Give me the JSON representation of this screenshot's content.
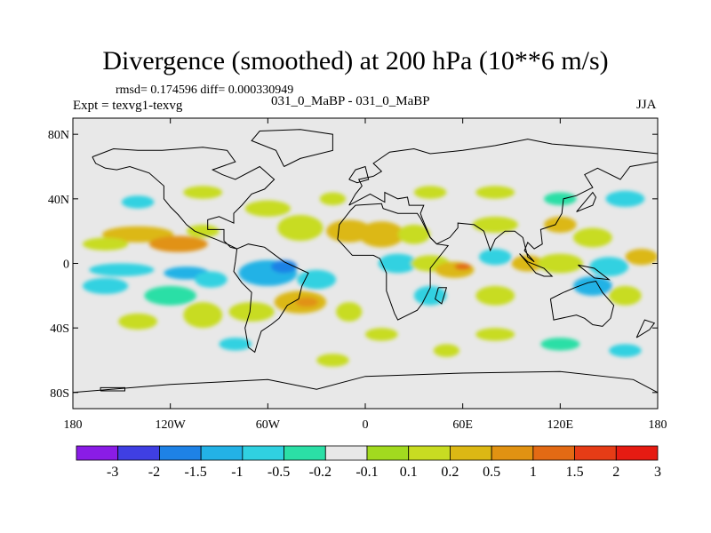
{
  "chart_data": {
    "type": "heatmap",
    "title": "Divergence (smoothed) at 200 hPa (10**6 m/s)",
    "stats_line": "rmsd= 0.174596 diff= 0.000330949",
    "experiment": "Expt = texvg1-texvg",
    "cases": "031_0_MaBP - 031_0_MaBP",
    "season": "JJA",
    "x_range": [
      -180,
      180
    ],
    "y_range": [
      -90,
      90
    ],
    "x_ticks": [
      {
        "value": -180,
        "label": "180"
      },
      {
        "value": -120,
        "label": "120W"
      },
      {
        "value": -60,
        "label": "60W"
      },
      {
        "value": 0,
        "label": "0"
      },
      {
        "value": 60,
        "label": "60E"
      },
      {
        "value": 120,
        "label": "120E"
      },
      {
        "value": 180,
        "label": "180"
      }
    ],
    "y_ticks": [
      {
        "value": 80,
        "label": "80N"
      },
      {
        "value": 40,
        "label": "40N"
      },
      {
        "value": 0,
        "label": "0"
      },
      {
        "value": -40,
        "label": "40S"
      },
      {
        "value": -80,
        "label": "80S"
      }
    ],
    "colorbar": {
      "colors": [
        "#8a1ce6",
        "#3f3fe3",
        "#1e82e6",
        "#23b2e6",
        "#30d1e1",
        "#2bdfa6",
        "#e8e8e8",
        "#a2da1f",
        "#c8dc22",
        "#dcb814",
        "#e19212",
        "#e36a14",
        "#e63c16",
        "#e61b12"
      ],
      "labels": [
        "-3",
        "-2",
        "-1.5",
        "-1",
        "-0.5",
        "-0.2",
        "-0.1",
        "0.1",
        "0.2",
        "0.5",
        "1",
        "1.5",
        "2",
        "3"
      ]
    },
    "features": [
      {
        "lon": -140,
        "lat": 18,
        "rx": 22,
        "ry": 5,
        "level": 9
      },
      {
        "lon": -115,
        "lat": 12,
        "rx": 18,
        "ry": 5,
        "level": 10
      },
      {
        "lon": -160,
        "lat": 12,
        "rx": 14,
        "ry": 4,
        "level": 8
      },
      {
        "lon": -100,
        "lat": 20,
        "rx": 10,
        "ry": 4,
        "level": 8
      },
      {
        "lon": -150,
        "lat": -4,
        "rx": 20,
        "ry": 4,
        "level": 4
      },
      {
        "lon": -110,
        "lat": -6,
        "rx": 14,
        "ry": 4,
        "level": 3
      },
      {
        "lon": -160,
        "lat": -14,
        "rx": 14,
        "ry": 5,
        "level": 4
      },
      {
        "lon": -120,
        "lat": -20,
        "rx": 16,
        "ry": 6,
        "level": 5
      },
      {
        "lon": -95,
        "lat": -10,
        "rx": 10,
        "ry": 5,
        "level": 4
      },
      {
        "lon": -60,
        "lat": -6,
        "rx": 18,
        "ry": 8,
        "level": 3
      },
      {
        "lon": -50,
        "lat": -2,
        "rx": 8,
        "ry": 4,
        "level": 2
      },
      {
        "lon": -30,
        "lat": -10,
        "rx": 12,
        "ry": 6,
        "level": 4
      },
      {
        "lon": -40,
        "lat": -24,
        "rx": 16,
        "ry": 7,
        "level": 9
      },
      {
        "lon": -36,
        "lat": -24,
        "rx": 7,
        "ry": 3,
        "level": 10
      },
      {
        "lon": -70,
        "lat": -30,
        "rx": 14,
        "ry": 6,
        "level": 8
      },
      {
        "lon": -100,
        "lat": -32,
        "rx": 12,
        "ry": 8,
        "level": 8
      },
      {
        "lon": -10,
        "lat": -30,
        "rx": 8,
        "ry": 6,
        "level": 8
      },
      {
        "lon": -40,
        "lat": 22,
        "rx": 14,
        "ry": 8,
        "level": 8
      },
      {
        "lon": -10,
        "lat": 20,
        "rx": 14,
        "ry": 7,
        "level": 9
      },
      {
        "lon": 10,
        "lat": 18,
        "rx": 14,
        "ry": 8,
        "level": 9
      },
      {
        "lon": 30,
        "lat": 18,
        "rx": 10,
        "ry": 6,
        "level": 8
      },
      {
        "lon": 20,
        "lat": 0,
        "rx": 12,
        "ry": 6,
        "level": 4
      },
      {
        "lon": 40,
        "lat": 0,
        "rx": 12,
        "ry": 5,
        "level": 8
      },
      {
        "lon": 55,
        "lat": -4,
        "rx": 12,
        "ry": 5,
        "level": 9
      },
      {
        "lon": 60,
        "lat": -2,
        "rx": 5,
        "ry": 2,
        "level": 11
      },
      {
        "lon": 80,
        "lat": 4,
        "rx": 10,
        "ry": 5,
        "level": 4
      },
      {
        "lon": 100,
        "lat": 0,
        "rx": 10,
        "ry": 5,
        "level": 9
      },
      {
        "lon": 120,
        "lat": 0,
        "rx": 14,
        "ry": 6,
        "level": 8
      },
      {
        "lon": 150,
        "lat": -2,
        "rx": 12,
        "ry": 6,
        "level": 4
      },
      {
        "lon": 170,
        "lat": 4,
        "rx": 10,
        "ry": 5,
        "level": 9
      },
      {
        "lon": 80,
        "lat": 24,
        "rx": 14,
        "ry": 5,
        "level": 8
      },
      {
        "lon": 120,
        "lat": 24,
        "rx": 10,
        "ry": 5,
        "level": 9
      },
      {
        "lon": 140,
        "lat": 16,
        "rx": 12,
        "ry": 6,
        "level": 8
      },
      {
        "lon": 40,
        "lat": -20,
        "rx": 10,
        "ry": 6,
        "level": 4
      },
      {
        "lon": 80,
        "lat": -20,
        "rx": 12,
        "ry": 6,
        "level": 8
      },
      {
        "lon": 140,
        "lat": -14,
        "rx": 12,
        "ry": 6,
        "level": 3
      },
      {
        "lon": 160,
        "lat": -20,
        "rx": 10,
        "ry": 6,
        "level": 8
      },
      {
        "lon": -100,
        "lat": 44,
        "rx": 12,
        "ry": 4,
        "level": 8
      },
      {
        "lon": -140,
        "lat": 38,
        "rx": 10,
        "ry": 4,
        "level": 4
      },
      {
        "lon": -60,
        "lat": 34,
        "rx": 14,
        "ry": 5,
        "level": 8
      },
      {
        "lon": 40,
        "lat": 44,
        "rx": 10,
        "ry": 4,
        "level": 8
      },
      {
        "lon": 80,
        "lat": 44,
        "rx": 12,
        "ry": 4,
        "level": 8
      },
      {
        "lon": 120,
        "lat": 40,
        "rx": 10,
        "ry": 4,
        "level": 5
      },
      {
        "lon": 160,
        "lat": 40,
        "rx": 12,
        "ry": 5,
        "level": 4
      },
      {
        "lon": -20,
        "lat": 40,
        "rx": 8,
        "ry": 4,
        "level": 8
      },
      {
        "lon": 10,
        "lat": -44,
        "rx": 10,
        "ry": 4,
        "level": 8
      },
      {
        "lon": 50,
        "lat": -54,
        "rx": 8,
        "ry": 4,
        "level": 8
      },
      {
        "lon": 120,
        "lat": -50,
        "rx": 12,
        "ry": 4,
        "level": 5
      },
      {
        "lon": 160,
        "lat": -54,
        "rx": 10,
        "ry": 4,
        "level": 4
      },
      {
        "lon": -140,
        "lat": -36,
        "rx": 12,
        "ry": 5,
        "level": 8
      },
      {
        "lon": -80,
        "lat": -50,
        "rx": 10,
        "ry": 4,
        "level": 4
      },
      {
        "lon": -20,
        "lat": -60,
        "rx": 10,
        "ry": 4,
        "level": 8
      },
      {
        "lon": 80,
        "lat": -44,
        "rx": 12,
        "ry": 4,
        "level": 8
      }
    ],
    "coastlines": [
      [
        [
          -168,
          66
        ],
        [
          -155,
          71
        ],
        [
          -140,
          70
        ],
        [
          -125,
          70
        ],
        [
          -100,
          72
        ],
        [
          -85,
          70
        ],
        [
          -80,
          63
        ],
        [
          -94,
          58
        ],
        [
          -88,
          55
        ],
        [
          -80,
          52
        ],
        [
          -65,
          60
        ],
        [
          -56,
          52
        ],
        [
          -62,
          46
        ],
        [
          -70,
          43
        ],
        [
          -76,
          36
        ],
        [
          -81,
          31
        ],
        [
          -81,
          25
        ],
        [
          -90,
          29
        ],
        [
          -97,
          27
        ],
        [
          -97,
          21
        ],
        [
          -87,
          21
        ],
        [
          -87,
          14
        ],
        [
          -83,
          10
        ],
        [
          -79,
          9
        ],
        [
          -85,
          12
        ],
        [
          -92,
          15
        ],
        [
          -105,
          20
        ],
        [
          -110,
          24
        ],
        [
          -115,
          30
        ],
        [
          -120,
          35
        ],
        [
          -124,
          40
        ],
        [
          -124,
          48
        ],
        [
          -133,
          56
        ],
        [
          -145,
          60
        ],
        [
          -153,
          58
        ],
        [
          -160,
          59
        ],
        [
          -166,
          62
        ],
        [
          -168,
          66
        ]
      ],
      [
        [
          -79,
          9
        ],
        [
          -72,
          12
        ],
        [
          -62,
          10
        ],
        [
          -50,
          1
        ],
        [
          -35,
          -6
        ],
        [
          -39,
          -14
        ],
        [
          -41,
          -22
        ],
        [
          -48,
          -26
        ],
        [
          -53,
          -34
        ],
        [
          -58,
          -38
        ],
        [
          -64,
          -42
        ],
        [
          -66,
          -48
        ],
        [
          -68,
          -55
        ],
        [
          -72,
          -52
        ],
        [
          -74,
          -40
        ],
        [
          -71,
          -30
        ],
        [
          -70,
          -18
        ],
        [
          -76,
          -12
        ],
        [
          -81,
          -5
        ],
        [
          -80,
          1
        ],
        [
          -79,
          9
        ]
      ],
      [
        [
          -50,
          60
        ],
        [
          -40,
          65
        ],
        [
          -20,
          70
        ],
        [
          -20,
          80
        ],
        [
          -40,
          83
        ],
        [
          -65,
          82
        ],
        [
          -70,
          76
        ],
        [
          -55,
          70
        ],
        [
          -50,
          60
        ]
      ],
      [
        [
          -10,
          36
        ],
        [
          -6,
          43
        ],
        [
          -2,
          48
        ],
        [
          -4,
          52
        ],
        [
          5,
          54
        ],
        [
          10,
          57
        ],
        [
          5,
          62
        ],
        [
          15,
          69
        ],
        [
          30,
          71
        ],
        [
          40,
          68
        ],
        [
          60,
          70
        ],
        [
          80,
          73
        ],
        [
          100,
          77
        ],
        [
          115,
          74
        ],
        [
          140,
          72
        ],
        [
          160,
          70
        ],
        [
          180,
          68
        ],
        [
          180,
          63
        ],
        [
          163,
          60
        ],
        [
          157,
          52
        ],
        [
          143,
          59
        ],
        [
          135,
          55
        ],
        [
          140,
          47
        ],
        [
          130,
          42
        ],
        [
          122,
          40
        ],
        [
          121,
          31
        ],
        [
          117,
          24
        ],
        [
          108,
          21
        ],
        [
          109,
          12
        ],
        [
          104,
          9
        ],
        [
          100,
          13
        ],
        [
          98,
          8
        ],
        [
          104,
          1
        ],
        [
          100,
          4
        ],
        [
          97,
          16
        ],
        [
          92,
          20
        ],
        [
          86,
          20
        ],
        [
          80,
          15
        ],
        [
          77,
          8
        ],
        [
          73,
          20
        ],
        [
          67,
          24
        ],
        [
          57,
          25
        ],
        [
          57,
          22
        ],
        [
          52,
          16
        ],
        [
          44,
          12
        ],
        [
          40,
          16
        ],
        [
          35,
          28
        ],
        [
          34,
          31
        ],
        [
          36,
          36
        ],
        [
          27,
          36
        ],
        [
          26,
          41
        ],
        [
          20,
          40
        ],
        [
          12,
          44
        ],
        [
          12,
          38
        ],
        [
          3,
          43
        ],
        [
          -10,
          36
        ]
      ],
      [
        [
          -17,
          15
        ],
        [
          -16,
          24
        ],
        [
          -9,
          33
        ],
        [
          -6,
          36
        ],
        [
          10,
          37
        ],
        [
          11,
          34
        ],
        [
          20,
          31
        ],
        [
          32,
          31
        ],
        [
          34,
          28
        ],
        [
          40,
          16
        ],
        [
          44,
          12
        ],
        [
          51,
          11
        ],
        [
          40,
          -3
        ],
        [
          40,
          -15
        ],
        [
          35,
          -25
        ],
        [
          32,
          -29
        ],
        [
          20,
          -35
        ],
        [
          18,
          -31
        ],
        [
          13,
          -17
        ],
        [
          13,
          -6
        ],
        [
          9,
          3
        ],
        [
          5,
          5
        ],
        [
          -8,
          5
        ],
        [
          -17,
          15
        ]
      ],
      [
        [
          114,
          -22
        ],
        [
          122,
          -18
        ],
        [
          129,
          -15
        ],
        [
          137,
          -12
        ],
        [
          142,
          -11
        ],
        [
          146,
          -18
        ],
        [
          153,
          -26
        ],
        [
          151,
          -34
        ],
        [
          146,
          -39
        ],
        [
          140,
          -38
        ],
        [
          135,
          -34
        ],
        [
          130,
          -32
        ],
        [
          116,
          -35
        ],
        [
          114,
          -22
        ]
      ],
      [
        [
          -180,
          -80
        ],
        [
          -120,
          -75
        ],
        [
          -60,
          -72
        ],
        [
          -30,
          -78
        ],
        [
          0,
          -70
        ],
        [
          60,
          -68
        ],
        [
          120,
          -67
        ],
        [
          165,
          -72
        ],
        [
          180,
          -80
        ]
      ],
      [
        [
          95,
          6
        ],
        [
          105,
          -6
        ],
        [
          110,
          -8
        ],
        [
          115,
          -8
        ],
        [
          110,
          -3
        ],
        [
          100,
          1
        ],
        [
          95,
          6
        ]
      ],
      [
        [
          131,
          -1
        ],
        [
          141,
          -3
        ],
        [
          150,
          -10
        ],
        [
          141,
          -9
        ],
        [
          131,
          -1
        ]
      ],
      [
        [
          167,
          -46
        ],
        [
          175,
          -41
        ],
        [
          178,
          -37
        ],
        [
          172,
          -35
        ],
        [
          167,
          -46
        ]
      ],
      [
        [
          -10,
          52
        ],
        [
          -6,
          58
        ],
        [
          0,
          60
        ],
        [
          2,
          52
        ],
        [
          -5,
          50
        ],
        [
          -10,
          52
        ]
      ],
      [
        [
          130,
          32
        ],
        [
          135,
          34
        ],
        [
          140,
          36
        ],
        [
          142,
          41
        ],
        [
          140,
          44
        ],
        [
          130,
          32
        ]
      ],
      [
        [
          45,
          -15
        ],
        [
          50,
          -15
        ],
        [
          47,
          -25
        ],
        [
          43,
          -22
        ],
        [
          45,
          -15
        ]
      ],
      [
        [
          -163,
          -79
        ],
        [
          -148,
          -79
        ],
        [
          -148,
          -77
        ],
        [
          -163,
          -77
        ],
        [
          -163,
          -79
        ]
      ]
    ]
  }
}
